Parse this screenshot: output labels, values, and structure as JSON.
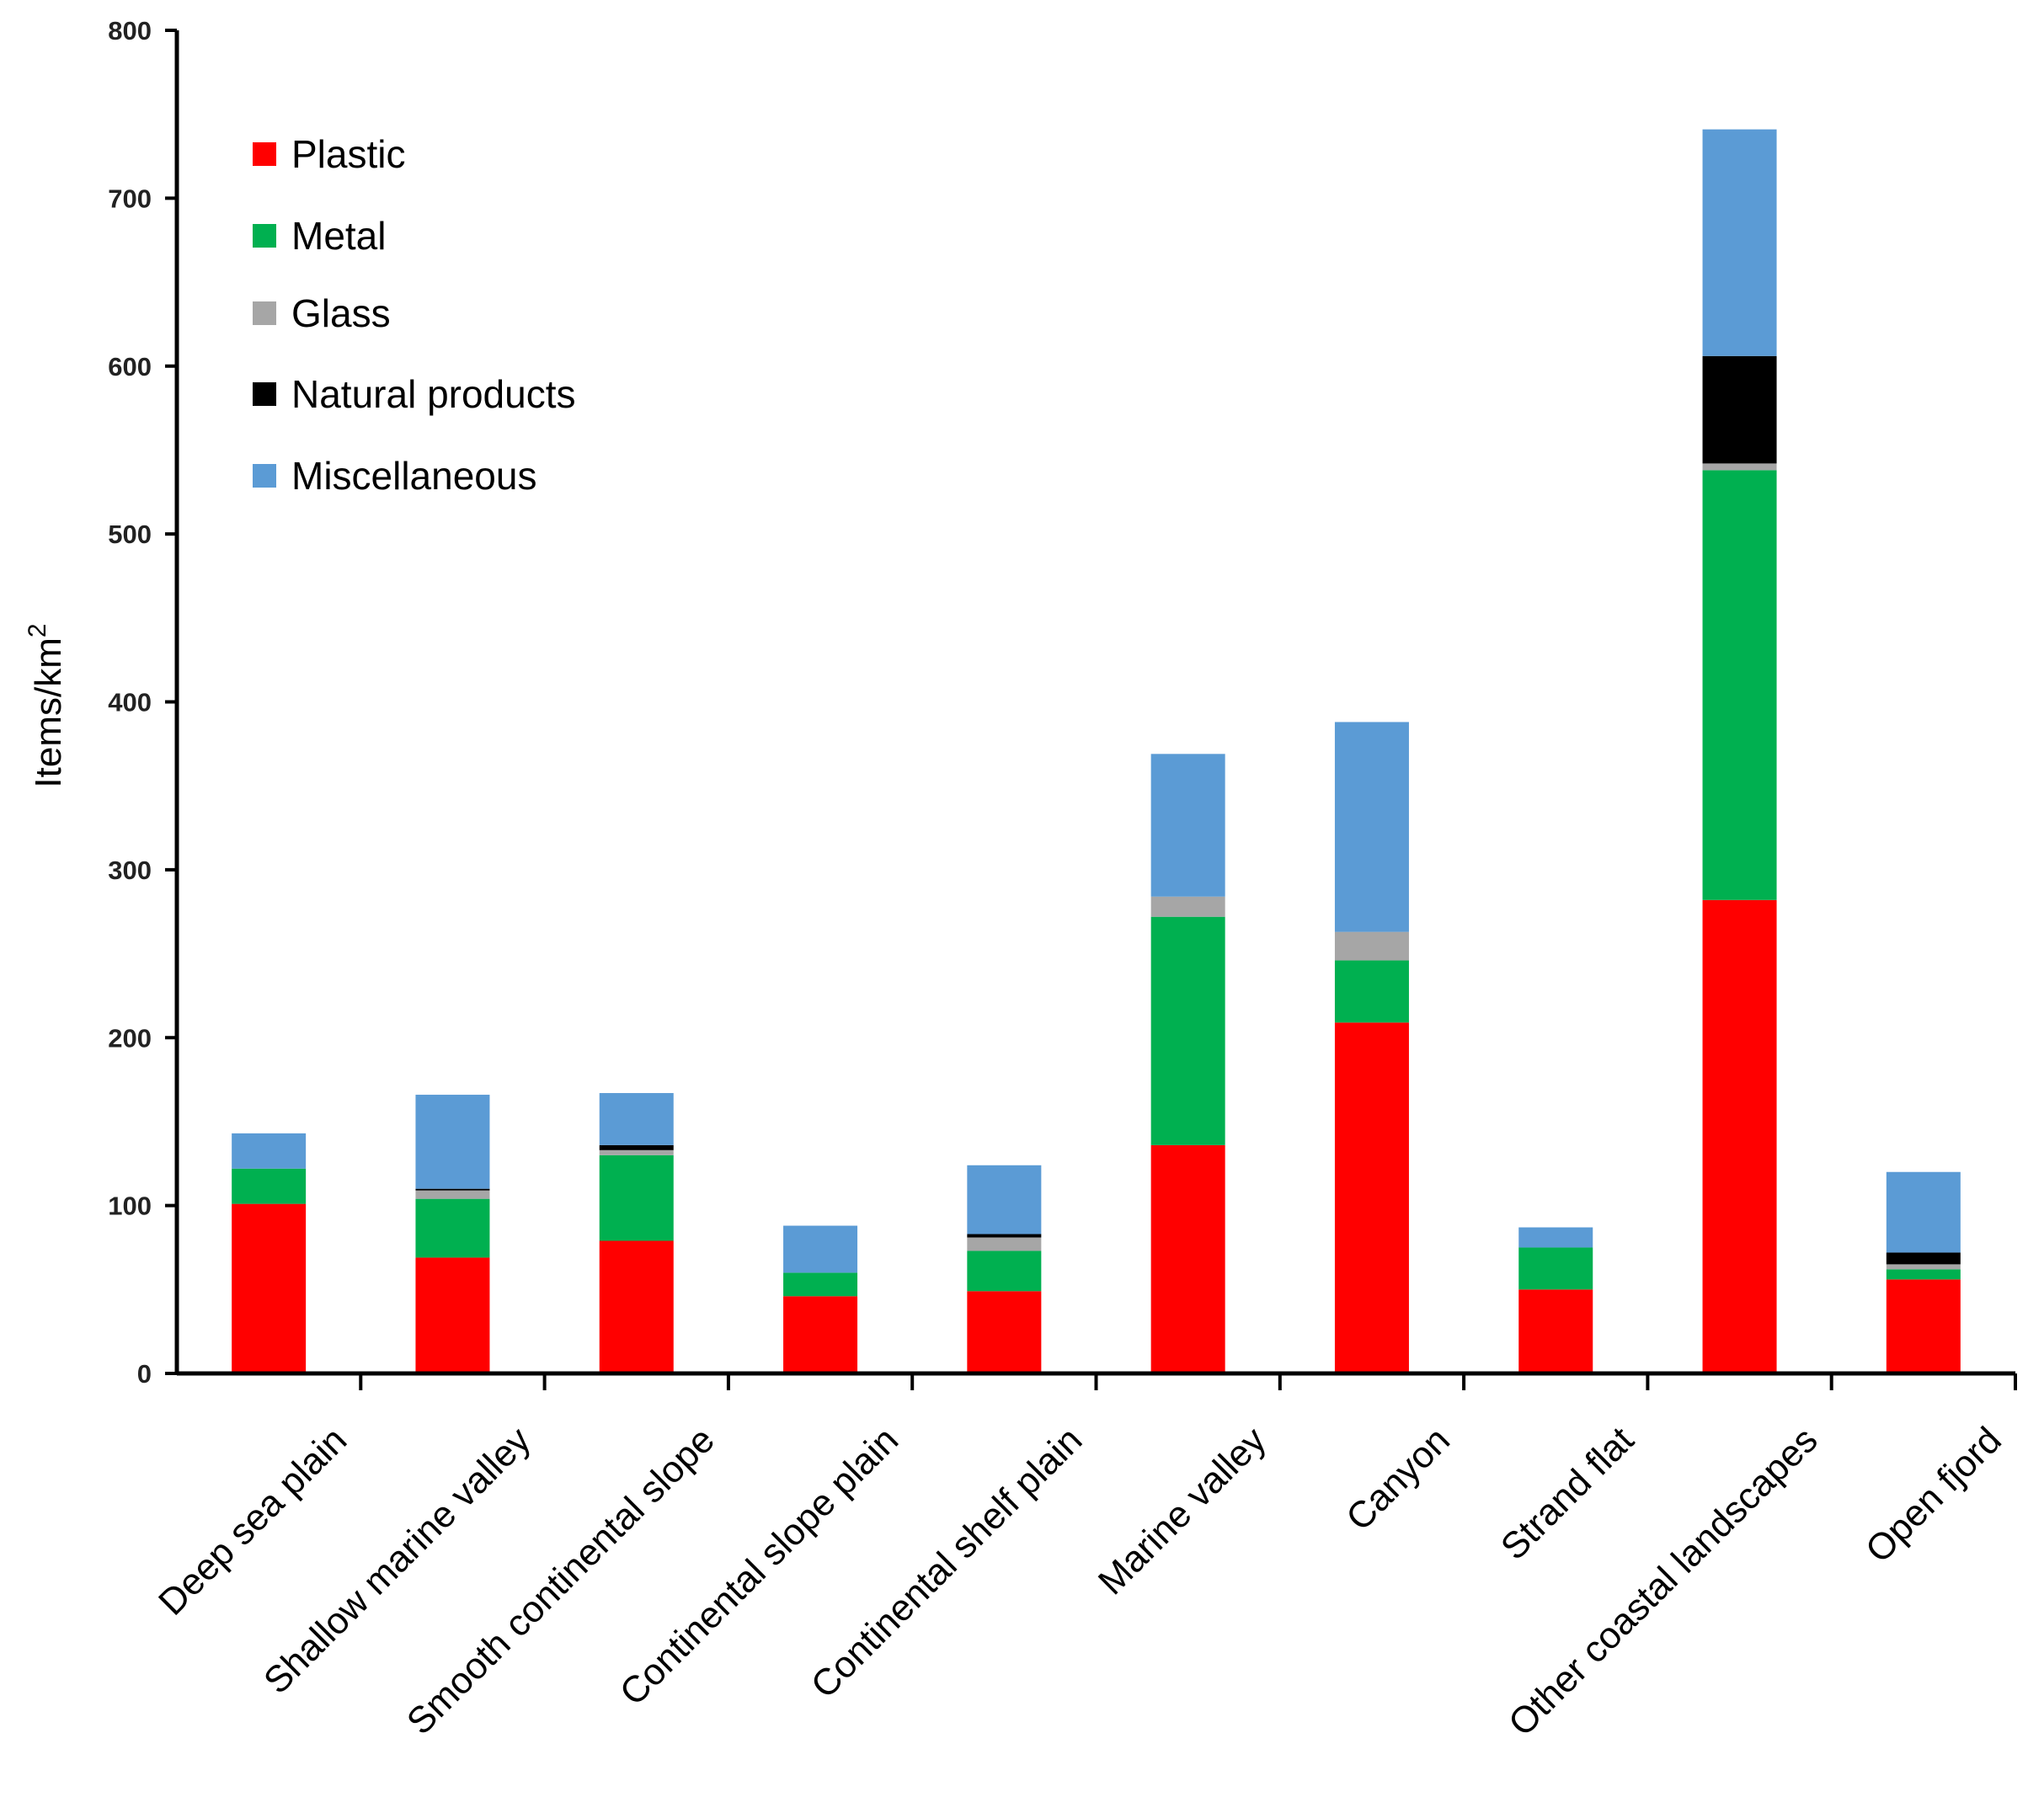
{
  "chart_data": {
    "type": "bar",
    "stacked": true,
    "title": "",
    "xlabel": "",
    "ylabel": "Items/km",
    "ylabel_superscript": "2",
    "ylim": [
      0,
      800
    ],
    "yticks": [
      0,
      100,
      200,
      300,
      400,
      500,
      600,
      700,
      800
    ],
    "grid": false,
    "legend_position": "top-left",
    "categories": [
      "Deep sea plain",
      "Shallow marine valley",
      "Smooth continental slope",
      "Continental slope plain",
      "Continental shelf plain",
      "Marine valley",
      "Canyon",
      "Strand flat",
      "Other coastal landscapes",
      "Open fjord"
    ],
    "series": [
      {
        "name": "Plastic",
        "color": "#ff0000",
        "values": [
          101,
          69,
          79,
          46,
          49,
          136,
          209,
          50,
          282,
          56
        ]
      },
      {
        "name": "Metal",
        "color": "#00b050",
        "values": [
          21,
          35,
          51,
          14,
          24,
          136,
          37,
          25,
          256,
          6
        ]
      },
      {
        "name": "Glass",
        "color": "#a6a6a6",
        "values": [
          0,
          5,
          3,
          0,
          8,
          12,
          17,
          0,
          4,
          3
        ]
      },
      {
        "name": "Natural products",
        "color": "#000000",
        "values": [
          0,
          1,
          3,
          0,
          2,
          0,
          0,
          0,
          64,
          7
        ]
      },
      {
        "name": "Miscellaneous",
        "color": "#5b9bd5",
        "values": [
          21,
          56,
          31,
          28,
          41,
          85,
          125,
          12,
          135,
          48
        ]
      }
    ]
  }
}
